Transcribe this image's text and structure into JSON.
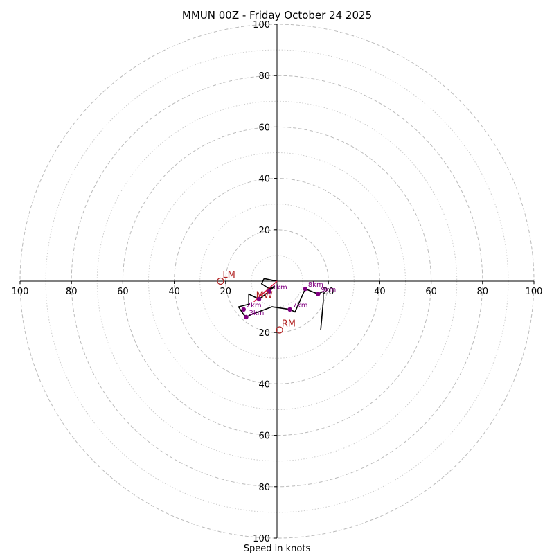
{
  "chart_data": {
    "type": "hodograph",
    "title": "MMUN 00Z - Friday October 24 2025",
    "xlabel": "Speed in knots",
    "rings": {
      "major": [
        20,
        40,
        60,
        80,
        100
      ],
      "minor": [
        10,
        30,
        50,
        70,
        90
      ],
      "major_style": "dashed",
      "minor_style": "dotted",
      "color": "#bbbbbb"
    },
    "x_ticks": [
      "100",
      "80",
      "60",
      "40",
      "20",
      "20",
      "40",
      "60",
      "80",
      "100"
    ],
    "x_tick_values": [
      -100,
      -80,
      -60,
      -40,
      -20,
      20,
      40,
      60,
      80,
      100
    ],
    "y_ticks": [
      "100",
      "80",
      "60",
      "40",
      "20",
      "20",
      "40",
      "60",
      "80",
      "100"
    ],
    "y_tick_values": [
      100,
      80,
      60,
      40,
      20,
      -20,
      -40,
      -60,
      -80,
      -100
    ],
    "colors": {
      "trace": "#000000",
      "height_markers": "#800080",
      "motion_markers": "#b22222",
      "mean_wind_line": "#dc143c"
    },
    "trace": [
      {
        "u": 0,
        "v": 0
      },
      {
        "u": -5,
        "v": 1
      },
      {
        "u": -6,
        "v": -1
      },
      {
        "u": -3,
        "v": -3
      },
      {
        "u": -1,
        "v": -2
      },
      {
        "u": -3,
        "v": -4
      },
      {
        "u": -7,
        "v": -7
      },
      {
        "u": -11,
        "v": -5
      },
      {
        "u": -11,
        "v": -9
      },
      {
        "u": -15,
        "v": -10
      },
      {
        "u": -13,
        "v": -13
      },
      {
        "u": -12,
        "v": -14
      },
      {
        "u": -10,
        "v": -13
      },
      {
        "u": -2,
        "v": -10
      },
      {
        "u": 5,
        "v": -11
      },
      {
        "u": 7,
        "v": -12
      },
      {
        "u": 11,
        "v": -3
      },
      {
        "u": 16,
        "v": -5
      },
      {
        "u": 18,
        "v": -4
      },
      {
        "u": 18,
        "v": -8
      },
      {
        "u": 17,
        "v": -19
      }
    ],
    "height_labels": [
      {
        "label": "1km",
        "u": -3,
        "v": -4
      },
      {
        "label": "2km",
        "u": -13,
        "v": -11
      },
      {
        "label": "3km",
        "u": -12,
        "v": -14
      },
      {
        "label": "7km",
        "u": 5,
        "v": -11
      },
      {
        "label": "8km",
        "u": 11,
        "v": -3
      },
      {
        "label": "9km",
        "u": 16,
        "v": -5
      }
    ],
    "height_dots": [
      {
        "u": -3,
        "v": -4
      },
      {
        "u": -7,
        "v": -7
      },
      {
        "u": -13,
        "v": -11
      },
      {
        "u": -12,
        "v": -14
      },
      {
        "u": 5,
        "v": -11
      },
      {
        "u": 11,
        "v": -3
      },
      {
        "u": 16,
        "v": -5
      }
    ],
    "storm_motion": [
      {
        "label": "LM",
        "u": -22,
        "v": 0
      },
      {
        "label": "RM",
        "u": 1,
        "v": -19
      },
      {
        "label": "MW",
        "u": -9,
        "v": -8
      }
    ],
    "mean_wind_line": [
      {
        "u": 0,
        "v": 0
      },
      {
        "u": -9,
        "v": -8
      }
    ]
  }
}
